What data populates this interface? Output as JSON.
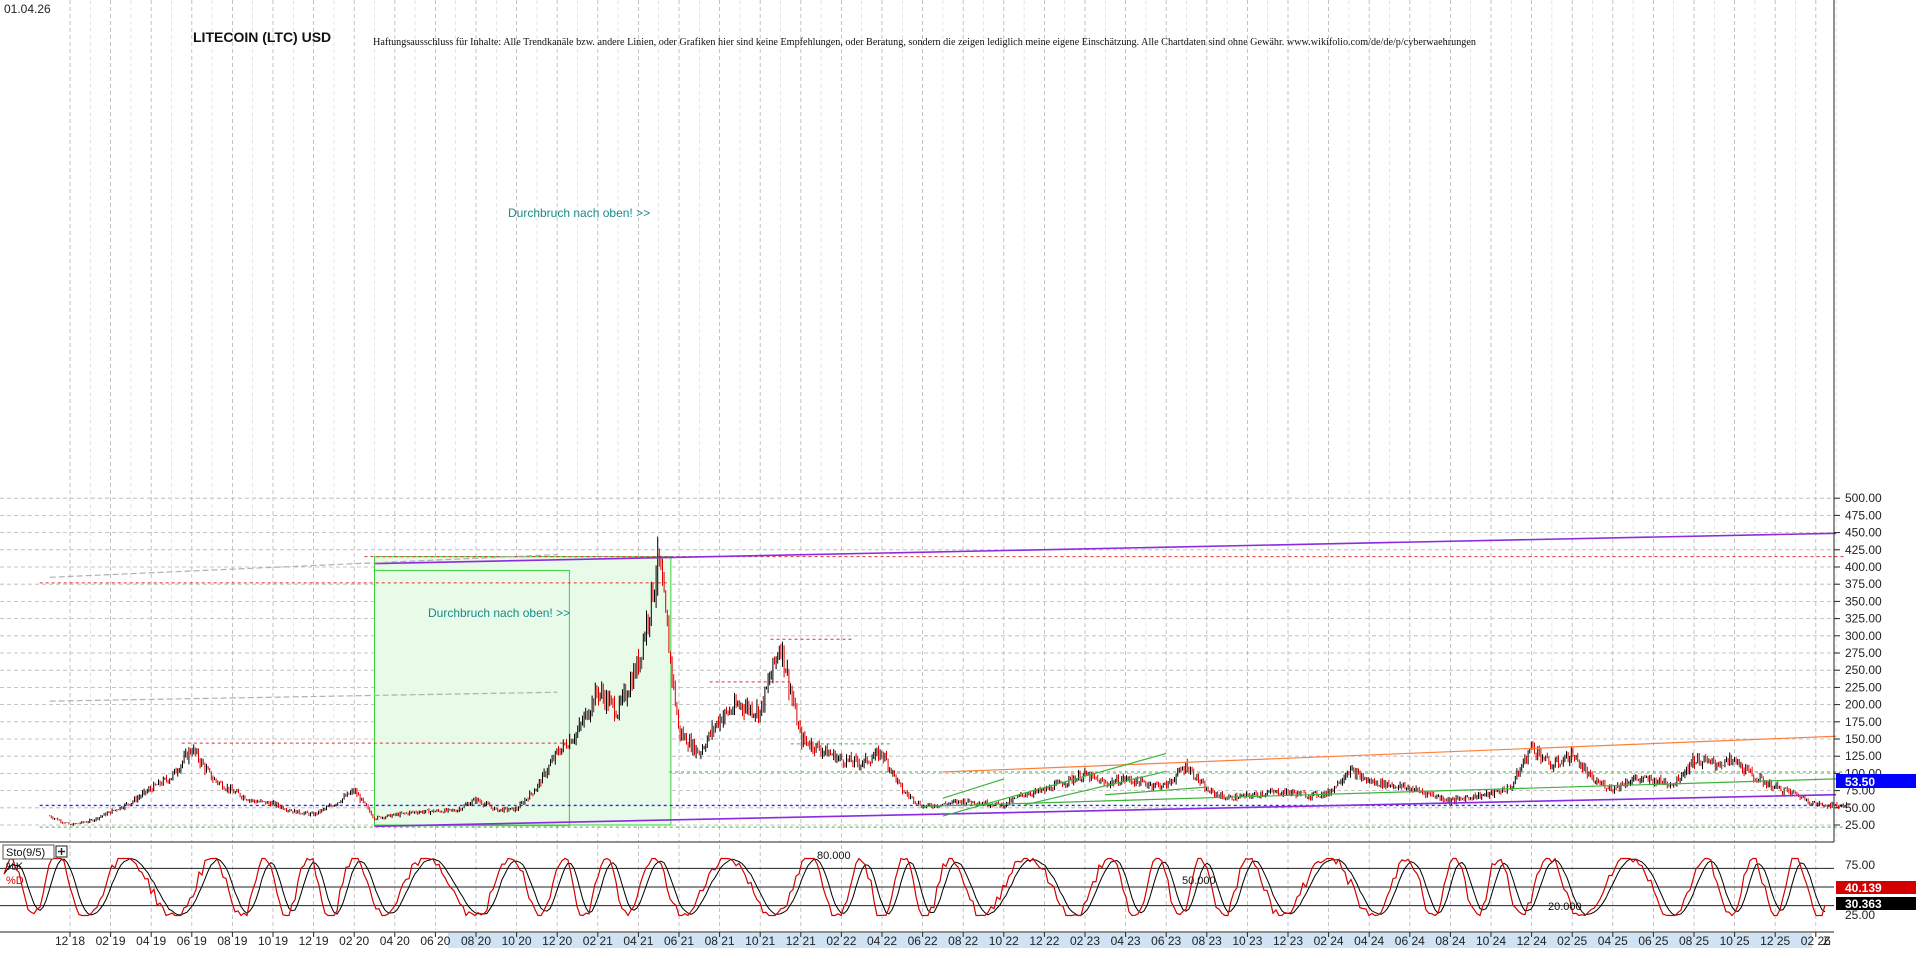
{
  "header": {
    "date": "01.04.26",
    "title": "LITECOIN (LTC) USD",
    "disclaimer": "Haftungsausschluss für Inhalte: Alle Trendkanäle bzw. andere Linien, oder Grafiken hier sind keine Empfehlungen, oder Beratung, sondern die zeigen lediglich meine eigene Einschätzung. Alle Chartdaten sind ohne Gewähr. www.wikifolio.com/de/de/p/cyberwaehrungen"
  },
  "annotations": {
    "breakout_upper": "Durchbruch nach oben! >>",
    "breakout_lower": "Durchbruch nach oben! >>"
  },
  "price_badge": {
    "value": "53.50",
    "color": "#0000ff"
  },
  "indicator": {
    "name": "Sto(9/5)",
    "k_label": "%K",
    "d_label": "%D",
    "level_high": "80.000",
    "level_mid": "50.000",
    "level_low": "20.000",
    "k_value": "40.139",
    "d_value": "30.363",
    "k_color": "#d40000",
    "d_color": "#000000",
    "axis_labels": [
      "75.00",
      "50.00",
      "25.00"
    ],
    "expand_icon": "plus-box-icon"
  },
  "end_marker": "Z",
  "colors": {
    "background": "#ffffff",
    "grid": "#b4b4b4",
    "candle_up": "#000000",
    "candle_down": "#e00000",
    "trend_purple": "#8a2be2",
    "trend_green": "#3cb43c",
    "trend_orange": "#ff7f3c",
    "box_fill": "#e8fae8",
    "box_stroke": "#3cd23c",
    "level_red": "#e03030",
    "level_blue": "#2233dd"
  },
  "chart_data": {
    "type": "candlestick",
    "title": "LITECOIN (LTC) USD",
    "ylim": [
      12,
      505
    ],
    "y_ticks": [
      25,
      50,
      75,
      100,
      125,
      150,
      175,
      200,
      225,
      250,
      275,
      300,
      325,
      350,
      375,
      400,
      425,
      450,
      475,
      500
    ],
    "y_tick_labels": [
      "25.00",
      "50.00",
      "75.00",
      "100.00",
      "125.00",
      "150.00",
      "175.00",
      "200.00",
      "225.00",
      "250.00",
      "275.00",
      "300.00",
      "325.00",
      "350.00",
      "375.00",
      "400.00",
      "425.00",
      "450.00",
      "475.00",
      "500.00"
    ],
    "x_labels": [
      "12 18",
      "02 19",
      "04 19",
      "06 19",
      "08 19",
      "10 19",
      "12 19",
      "02 20",
      "04 20",
      "06 20",
      "08 20",
      "10 20",
      "12 20",
      "02 21",
      "04 21",
      "06 21",
      "08 21",
      "10 21",
      "12 21",
      "02 22",
      "04 22",
      "06 22",
      "08 22",
      "10 22",
      "12 22",
      "02 23",
      "04 23",
      "06 23",
      "08 23",
      "10 23",
      "12 23",
      "02 24",
      "04 24",
      "06 24",
      "08 24",
      "10 24",
      "12 24",
      "02 25",
      "04 25",
      "06 25",
      "08 25",
      "10 25",
      "12 25",
      "02 26"
    ],
    "grid": true,
    "price_path": [
      {
        "date": "2018-11",
        "value": 38
      },
      {
        "date": "2018-12",
        "value": 25
      },
      {
        "date": "2019-01",
        "value": 31
      },
      {
        "date": "2019-02",
        "value": 44
      },
      {
        "date": "2019-03",
        "value": 58
      },
      {
        "date": "2019-04",
        "value": 78
      },
      {
        "date": "2019-05",
        "value": 95
      },
      {
        "date": "2019-06",
        "value": 136
      },
      {
        "date": "2019-07",
        "value": 93
      },
      {
        "date": "2019-08",
        "value": 74
      },
      {
        "date": "2019-09",
        "value": 60
      },
      {
        "date": "2019-10",
        "value": 56
      },
      {
        "date": "2019-11",
        "value": 45
      },
      {
        "date": "2019-12",
        "value": 40
      },
      {
        "date": "2020-01",
        "value": 55
      },
      {
        "date": "2020-02",
        "value": 75
      },
      {
        "date": "2020-03",
        "value": 35
      },
      {
        "date": "2020-05",
        "value": 44
      },
      {
        "date": "2020-07",
        "value": 46
      },
      {
        "date": "2020-08",
        "value": 62
      },
      {
        "date": "2020-09",
        "value": 47
      },
      {
        "date": "2020-10",
        "value": 48
      },
      {
        "date": "2020-11",
        "value": 80
      },
      {
        "date": "2020-12",
        "value": 130
      },
      {
        "date": "2021-01",
        "value": 160
      },
      {
        "date": "2021-02",
        "value": 220
      },
      {
        "date": "2021-03",
        "value": 190
      },
      {
        "date": "2021-04",
        "value": 260
      },
      {
        "date": "2021-05",
        "value": 410
      },
      {
        "date": "2021-06",
        "value": 160
      },
      {
        "date": "2021-07",
        "value": 130
      },
      {
        "date": "2021-08",
        "value": 180
      },
      {
        "date": "2021-09",
        "value": 200
      },
      {
        "date": "2021-10",
        "value": 190
      },
      {
        "date": "2021-11",
        "value": 290
      },
      {
        "date": "2021-12",
        "value": 150
      },
      {
        "date": "2022-01",
        "value": 135
      },
      {
        "date": "2022-02",
        "value": 120
      },
      {
        "date": "2022-03",
        "value": 115
      },
      {
        "date": "2022-04",
        "value": 130
      },
      {
        "date": "2022-05",
        "value": 75
      },
      {
        "date": "2022-06",
        "value": 52
      },
      {
        "date": "2022-07",
        "value": 55
      },
      {
        "date": "2022-08",
        "value": 60
      },
      {
        "date": "2022-09",
        "value": 57
      },
      {
        "date": "2022-10",
        "value": 54
      },
      {
        "date": "2022-11",
        "value": 70
      },
      {
        "date": "2022-12",
        "value": 75
      },
      {
        "date": "2023-01",
        "value": 88
      },
      {
        "date": "2023-02",
        "value": 98
      },
      {
        "date": "2023-03",
        "value": 85
      },
      {
        "date": "2023-04",
        "value": 92
      },
      {
        "date": "2023-05",
        "value": 85
      },
      {
        "date": "2023-06",
        "value": 82
      },
      {
        "date": "2023-07",
        "value": 112
      },
      {
        "date": "2023-08",
        "value": 75
      },
      {
        "date": "2023-09",
        "value": 64
      },
      {
        "date": "2023-10",
        "value": 67
      },
      {
        "date": "2023-11",
        "value": 72
      },
      {
        "date": "2023-12",
        "value": 73
      },
      {
        "date": "2024-01",
        "value": 68
      },
      {
        "date": "2024-02",
        "value": 71
      },
      {
        "date": "2024-03",
        "value": 105
      },
      {
        "date": "2024-04",
        "value": 88
      },
      {
        "date": "2024-05",
        "value": 84
      },
      {
        "date": "2024-06",
        "value": 78
      },
      {
        "date": "2024-07",
        "value": 70
      },
      {
        "date": "2024-08",
        "value": 60
      },
      {
        "date": "2024-09",
        "value": 66
      },
      {
        "date": "2024-10",
        "value": 70
      },
      {
        "date": "2024-11",
        "value": 80
      },
      {
        "date": "2024-12",
        "value": 140
      },
      {
        "date": "2025-01",
        "value": 110
      },
      {
        "date": "2025-02",
        "value": 128
      },
      {
        "date": "2025-03",
        "value": 90
      },
      {
        "date": "2025-04",
        "value": 78
      },
      {
        "date": "2025-05",
        "value": 92
      },
      {
        "date": "2025-06",
        "value": 90
      },
      {
        "date": "2025-07",
        "value": 85
      },
      {
        "date": "2025-08",
        "value": 120
      },
      {
        "date": "2025-09",
        "value": 114
      },
      {
        "date": "2025-10",
        "value": 118
      },
      {
        "date": "2025-11",
        "value": 94
      },
      {
        "date": "2025-12",
        "value": 80
      },
      {
        "date": "2026-01",
        "value": 70
      },
      {
        "date": "2026-02",
        "value": 55
      },
      {
        "date": "2026-03",
        "value": 53.5
      }
    ],
    "horizontal_levels": [
      {
        "value": 415,
        "from": "2020-03",
        "to": "2026-03",
        "color": "red"
      },
      {
        "value": 377,
        "from": "2018-11",
        "to": "2021-05",
        "color": "red"
      },
      {
        "value": 295,
        "from": "2021-11",
        "to": "2022-02",
        "color": "red"
      },
      {
        "value": 233,
        "from": "2021-08",
        "to": "2021-11",
        "color": "red"
      },
      {
        "value": 144,
        "from": "2019-06",
        "to": "2020-12",
        "color": "red"
      },
      {
        "value": 143,
        "from": "2021-12",
        "to": "2022-04",
        "color": "green"
      },
      {
        "value": 102,
        "from": "2021-06",
        "to": "2026-03",
        "color": "green"
      },
      {
        "value": 53.5,
        "from": "2018-11",
        "to": "2026-03",
        "color": "blue"
      },
      {
        "value": 22,
        "from": "2018-11",
        "to": "2026-03",
        "color": "green"
      }
    ],
    "trendlines": [
      {
        "color": "purple",
        "from": {
          "date": "2020-03",
          "value": 405
        },
        "to": {
          "date": "2026-03",
          "value": 449
        }
      },
      {
        "color": "purple",
        "from": {
          "date": "2020-03",
          "value": 23
        },
        "to": {
          "date": "2026-03",
          "value": 69
        }
      },
      {
        "color": "orange",
        "from": {
          "date": "2022-07",
          "value": 102
        },
        "to": {
          "date": "2026-03",
          "value": 154
        }
      },
      {
        "color": "green",
        "from": {
          "date": "2022-06",
          "value": 52
        },
        "to": {
          "date": "2026-03",
          "value": 92
        }
      },
      {
        "color": "green",
        "from": {
          "date": "2022-07",
          "value": 38
        },
        "to": {
          "date": "2023-06",
          "value": 129
        }
      },
      {
        "color": "green",
        "from": {
          "date": "2022-07",
          "value": 64
        },
        "to": {
          "date": "2022-10",
          "value": 92
        }
      },
      {
        "color": "green",
        "from": {
          "date": "2022-11",
          "value": 54
        },
        "to": {
          "date": "2023-06",
          "value": 103
        }
      },
      {
        "color": "green",
        "from": {
          "date": "2023-03",
          "value": 69
        },
        "to": {
          "date": "2023-08",
          "value": 80
        }
      },
      {
        "color": "gray",
        "from": {
          "date": "2018-11",
          "value": 385
        },
        "to": {
          "date": "2020-12",
          "value": 418
        }
      },
      {
        "color": "gray",
        "from": {
          "date": "2018-11",
          "value": 205
        },
        "to": {
          "date": "2020-12",
          "value": 218
        }
      }
    ],
    "zones": [
      {
        "from": "2020-03",
        "to": "2021-05",
        "low": 25,
        "high": 415
      },
      {
        "from": "2020-03",
        "to": "2020-12",
        "low": 24,
        "high": 395
      }
    ],
    "stochastic": {
      "name": "Sto(9/5)",
      "ylim": [
        0,
        100
      ],
      "levels": [
        80,
        50,
        20
      ],
      "k_last": 40.139,
      "d_last": 30.363
    }
  }
}
